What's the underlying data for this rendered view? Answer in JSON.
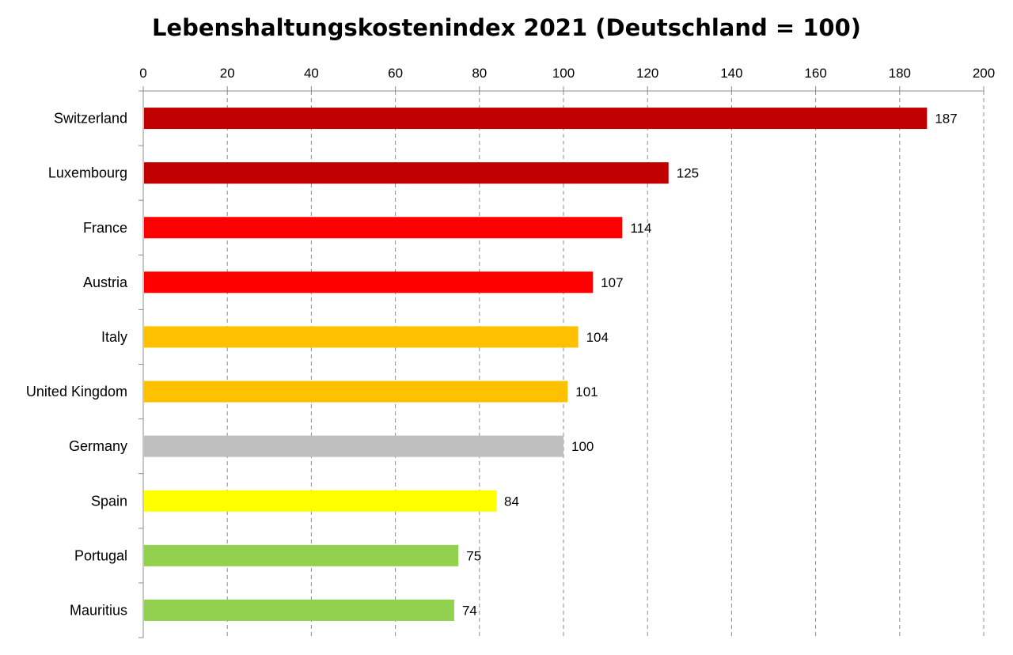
{
  "chart_data": {
    "type": "bar",
    "orientation": "horizontal",
    "title": "Lebenshaltungskostenindex 2021 (Deutschland = 100)",
    "xlabel": "",
    "ylabel": "",
    "xlim": [
      0,
      200
    ],
    "x_ticks": [
      0,
      20,
      40,
      60,
      80,
      100,
      120,
      140,
      160,
      180,
      200
    ],
    "x_tick_labels": [
      "0",
      "20",
      "40",
      "60",
      "80",
      "100",
      "120",
      "140",
      "160",
      "180",
      "200"
    ],
    "x_axis_position": "top",
    "grid": "vertical dashed",
    "legend": "none",
    "categories": [
      "Switzerland",
      "Luxembourg",
      "France",
      "Austria",
      "Italy",
      "United Kingdom",
      "Germany",
      "Spain",
      "Portugal",
      "Mauritius"
    ],
    "values": [
      186.5,
      125,
      114,
      107,
      103.5,
      101,
      100,
      84,
      75,
      74
    ],
    "value_labels": [
      "187",
      "125",
      "114",
      "107",
      "104",
      "101",
      "100",
      "84",
      "75",
      "74"
    ],
    "colors": [
      "#c00000",
      "#c00000",
      "#ff0000",
      "#ff0000",
      "#ffc000",
      "#ffc000",
      "#bfbfbf",
      "#ffff00",
      "#92d050",
      "#92d050"
    ]
  }
}
